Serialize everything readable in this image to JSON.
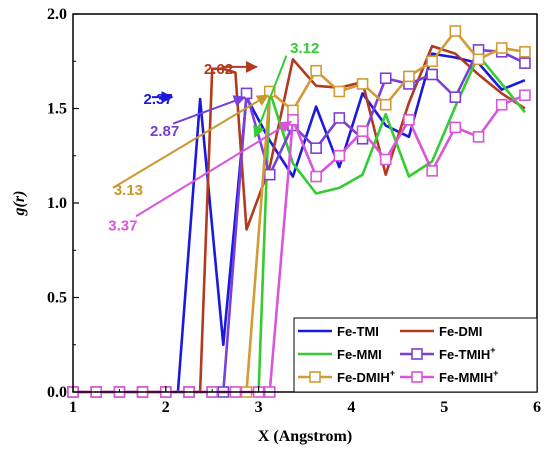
{
  "chart_data": {
    "type": "line",
    "xlabel": "X (Angstrom)",
    "ylabel": "g(r)",
    "xlim": [
      1,
      6
    ],
    "ylim": [
      0,
      2
    ],
    "xticks": [
      1,
      2,
      3,
      4,
      5,
      6
    ],
    "yticks": [
      0.0,
      0.5,
      1.0,
      1.5,
      2.0
    ],
    "xtick_labels": [
      "1",
      "2",
      "3",
      "4",
      "5",
      "6"
    ],
    "ytick_labels": [
      "0.0",
      "0.5",
      "1.0",
      "1.5",
      "2.0"
    ],
    "legend_position": "bottom-right",
    "series": [
      {
        "name": "Fe-TMI",
        "label_main": "Fe-TMI",
        "label_sup": "",
        "color": "#1a1adb",
        "marker": "none",
        "x": [
          1.0,
          1.25,
          1.5,
          1.75,
          2.0,
          2.13,
          2.37,
          2.62,
          2.87,
          3.12,
          3.37,
          3.62,
          3.87,
          4.12,
          4.37,
          4.62,
          4.87,
          5.12,
          5.37,
          5.62,
          5.87
        ],
        "y": [
          0,
          0,
          0,
          0,
          0,
          0,
          1.55,
          0.25,
          1.56,
          1.33,
          1.14,
          1.51,
          1.19,
          1.58,
          1.41,
          1.35,
          1.79,
          1.77,
          1.74,
          1.6,
          1.65
        ]
      },
      {
        "name": "Fe-DMI",
        "label_main": "Fe-DMI",
        "label_sup": "",
        "color": "#b23a1e",
        "marker": "none",
        "x": [
          1.0,
          1.25,
          1.5,
          1.75,
          2.0,
          2.25,
          2.37,
          2.5,
          2.62,
          2.75,
          2.87,
          3.12,
          3.37,
          3.62,
          3.87,
          4.12,
          4.37,
          4.62,
          4.87,
          5.12,
          5.37,
          5.62,
          5.87
        ],
        "y": [
          0,
          0,
          0,
          0,
          0,
          0,
          0,
          1.71,
          1.71,
          1.69,
          0.86,
          1.19,
          1.76,
          1.62,
          1.61,
          1.64,
          1.15,
          1.53,
          1.83,
          1.79,
          1.68,
          1.58,
          1.5
        ]
      },
      {
        "name": "Fe-MMI",
        "label_main": "Fe-MMI",
        "label_sup": "",
        "color": "#33cc33",
        "marker": "none",
        "x": [
          1.0,
          1.25,
          1.5,
          1.75,
          2.0,
          2.25,
          2.5,
          2.75,
          3.0,
          3.12,
          3.37,
          3.62,
          3.87,
          4.12,
          4.37,
          4.62,
          4.87,
          5.12,
          5.37,
          5.62,
          5.87
        ],
        "y": [
          0,
          0,
          0,
          0,
          0,
          0,
          0,
          0,
          0,
          1.59,
          1.21,
          1.05,
          1.08,
          1.15,
          1.47,
          1.14,
          1.22,
          1.51,
          1.78,
          1.63,
          1.48
        ]
      },
      {
        "name": "Fe-TMIH+",
        "label_main": "Fe-TMIH",
        "label_sup": "+",
        "color": "#7a3fd6",
        "marker": "square",
        "x": [
          1.0,
          1.25,
          1.5,
          1.75,
          2.0,
          2.25,
          2.5,
          2.62,
          2.87,
          3.12,
          3.37,
          3.62,
          3.87,
          4.12,
          4.37,
          4.62,
          4.87,
          5.12,
          5.37,
          5.62,
          5.87
        ],
        "y": [
          0,
          0,
          0,
          0,
          0,
          0,
          0,
          0,
          1.58,
          1.15,
          1.41,
          1.29,
          1.45,
          1.34,
          1.66,
          1.63,
          1.68,
          1.56,
          1.81,
          1.8,
          1.74
        ]
      },
      {
        "name": "Fe-DMIH+",
        "label_main": "Fe-DMIH",
        "label_sup": "+",
        "color": "#d39a36",
        "marker": "square",
        "x": [
          1.0,
          1.25,
          1.5,
          1.75,
          2.0,
          2.25,
          2.5,
          2.75,
          2.87,
          3.12,
          3.37,
          3.62,
          3.87,
          4.12,
          4.37,
          4.62,
          4.87,
          5.12,
          5.37,
          5.62,
          5.87
        ],
        "y": [
          0,
          0,
          0,
          0,
          0,
          0,
          0,
          0,
          0,
          1.59,
          1.49,
          1.7,
          1.59,
          1.63,
          1.52,
          1.67,
          1.75,
          1.91,
          1.76,
          1.82,
          1.8
        ]
      },
      {
        "name": "Fe-MMIH+",
        "label_main": "Fe-MMIH",
        "label_sup": "+",
        "color": "#d955d9",
        "marker": "square",
        "x": [
          1.0,
          1.25,
          1.5,
          1.75,
          2.0,
          2.25,
          2.5,
          2.75,
          3.0,
          3.12,
          3.37,
          3.62,
          3.87,
          4.12,
          4.37,
          4.62,
          4.87,
          5.12,
          5.37,
          5.62,
          5.87
        ],
        "y": [
          0,
          0,
          0,
          0,
          0,
          0,
          0,
          0,
          0,
          0,
          1.44,
          1.14,
          1.25,
          1.38,
          1.23,
          1.44,
          1.17,
          1.4,
          1.35,
          1.52,
          1.57
        ]
      }
    ],
    "annotations": [
      {
        "text": "2.62",
        "color": "#b23a1e",
        "label_x": 2.41,
        "label_y": 1.71,
        "arrow_from": [
          2.6,
          1.72
        ],
        "arrow_to": [
          2.98,
          1.72
        ]
      },
      {
        "text": "3.12",
        "color": "#33cc33",
        "label_x": 3.34,
        "label_y": 1.82,
        "arrow_from": [
          3.3,
          1.78
        ],
        "arrow_to": [
          2.96,
          1.35
        ]
      },
      {
        "text": "2.37",
        "color": "#1a1adb",
        "label_x": 1.76,
        "label_y": 1.55,
        "arrow_from": [
          1.85,
          1.56
        ],
        "arrow_to": [
          2.07,
          1.56
        ]
      },
      {
        "text": "2.87",
        "color": "#7a3fd6",
        "label_x": 1.83,
        "label_y": 1.38,
        "arrow_from": [
          2.08,
          1.42
        ],
        "arrow_to": [
          2.85,
          1.56
        ]
      },
      {
        "text": "3.13",
        "color": "#c9972c",
        "label_x": 1.44,
        "label_y": 1.07,
        "arrow_from": [
          1.43,
          1.08
        ],
        "arrow_to": [
          3.1,
          1.57
        ]
      },
      {
        "text": "3.37",
        "color": "#d955d9",
        "label_x": 1.38,
        "label_y": 0.88,
        "arrow_from": [
          1.68,
          0.93
        ],
        "arrow_to": [
          3.35,
          1.43
        ]
      }
    ]
  }
}
